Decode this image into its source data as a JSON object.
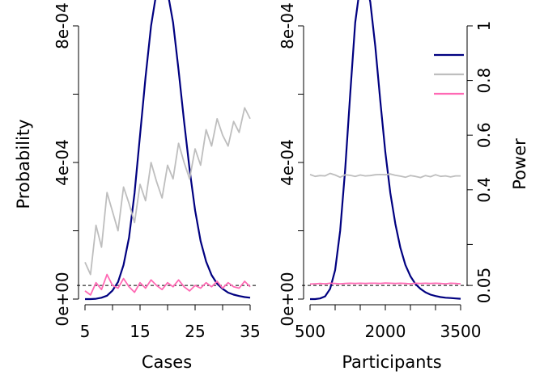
{
  "colors": {
    "probability": "#000080",
    "power_grey": "#bebebe",
    "power_pink": "#ff69b4",
    "reference": "#000000"
  },
  "chart_data": [
    {
      "type": "line",
      "xlabel": "Cases",
      "ylabel": "Probability",
      "xlim": [
        5,
        35
      ],
      "ylim": [
        0,
        0.0008
      ],
      "x_ticks": [
        5,
        10,
        15,
        20,
        25,
        30,
        35
      ],
      "x_tick_labels": [
        "5",
        "",
        "15",
        "",
        "25",
        "",
        "35"
      ],
      "y_ticks": [
        0,
        0.0002,
        0.0004,
        0.0006,
        0.0008
      ],
      "y_tick_labels": [
        "0e+00",
        "",
        "4e-04",
        "",
        "8e-04"
      ],
      "secondary_axis": {
        "label": "Power",
        "range": [
          0,
          1
        ],
        "ticks": [
          0.05,
          0.2,
          0.4,
          0.6,
          0.8,
          1
        ],
        "tick_labels": [
          "0.05",
          "",
          "0.4",
          "0.6",
          "0.8",
          "1"
        ]
      },
      "reference_line": {
        "axis": "power",
        "value": 0.05,
        "style": "dashed"
      },
      "series": [
        {
          "axis": "probability",
          "color": "#000080",
          "x": [
            5,
            6,
            7,
            8,
            9,
            10,
            11,
            12,
            13,
            14,
            15,
            16,
            17,
            18,
            19,
            20,
            21,
            22,
            23,
            24,
            25,
            26,
            27,
            28,
            29,
            30,
            31,
            32,
            33,
            34,
            35
          ],
          "y": [
            0,
            0,
            1e-06,
            4e-06,
            1e-05,
            2.5e-05,
            5e-05,
            0.0001,
            0.00018,
            0.00031,
            0.00048,
            0.00065,
            0.0008,
            0.0009,
            0.00093,
            0.0009,
            0.00081,
            0.00067,
            0.00052,
            0.00038,
            0.00026,
            0.00017,
            0.00011,
            7e-05,
            4.5e-05,
            3e-05,
            1.9e-05,
            1.3e-05,
            9e-06,
            6e-06,
            4e-06
          ]
        },
        {
          "axis": "power",
          "color": "#bebebe",
          "x": [
            5,
            6,
            7,
            8,
            9,
            10,
            11,
            12,
            13,
            14,
            15,
            16,
            17,
            18,
            19,
            20,
            21,
            22,
            23,
            24,
            25,
            26,
            27,
            28,
            29,
            30,
            31,
            32,
            33,
            34,
            35
          ],
          "y": [
            0.135,
            0.09,
            0.27,
            0.19,
            0.39,
            0.32,
            0.25,
            0.41,
            0.35,
            0.28,
            0.42,
            0.36,
            0.5,
            0.43,
            0.37,
            0.49,
            0.44,
            0.57,
            0.5,
            0.44,
            0.55,
            0.49,
            0.62,
            0.56,
            0.66,
            0.6,
            0.56,
            0.65,
            0.61,
            0.7,
            0.66
          ]
        },
        {
          "axis": "power",
          "color": "#ff69b4",
          "x": [
            5,
            6,
            7,
            8,
            9,
            10,
            11,
            12,
            13,
            14,
            15,
            16,
            17,
            18,
            19,
            20,
            21,
            22,
            23,
            24,
            25,
            26,
            27,
            28,
            29,
            30,
            31,
            32,
            33,
            34,
            35
          ],
          "y": [
            0.03,
            0.015,
            0.06,
            0.035,
            0.09,
            0.05,
            0.04,
            0.075,
            0.045,
            0.025,
            0.06,
            0.04,
            0.07,
            0.05,
            0.035,
            0.06,
            0.045,
            0.07,
            0.045,
            0.03,
            0.05,
            0.04,
            0.06,
            0.045,
            0.065,
            0.04,
            0.06,
            0.045,
            0.04,
            0.065,
            0.045
          ]
        }
      ]
    },
    {
      "type": "line",
      "xlabel": "Participants",
      "ylabel": "",
      "xlim": [
        500,
        3500
      ],
      "ylim": [
        0,
        0.0008
      ],
      "x_ticks": [
        500,
        1000,
        1500,
        2000,
        2500,
        3000,
        3500
      ],
      "x_tick_labels": [
        "500",
        "",
        "",
        "2000",
        "",
        "",
        "3500"
      ],
      "y_ticks": [
        0,
        0.0002,
        0.0004,
        0.0006,
        0.0008
      ],
      "y_tick_labels": [
        "0e+00",
        "",
        "4e-04",
        "",
        "8e-04"
      ],
      "secondary_axis": {
        "label": "Power",
        "range": [
          0,
          1
        ],
        "ticks": [
          0.05,
          0.2,
          0.4,
          0.6,
          0.8,
          1
        ],
        "tick_labels": [
          "0.05",
          "",
          "0.4",
          "0.6",
          "0.8",
          "1"
        ]
      },
      "reference_line": {
        "axis": "power",
        "value": 0.05,
        "style": "dashed"
      },
      "legend": {
        "position": "top-right",
        "entries": [
          {
            "color": "#000080"
          },
          {
            "color": "#bebebe"
          },
          {
            "color": "#ff69b4"
          }
        ]
      },
      "series": [
        {
          "axis": "probability",
          "color": "#000080",
          "x": [
            500,
            600,
            700,
            800,
            900,
            1000,
            1100,
            1200,
            1300,
            1400,
            1500,
            1600,
            1700,
            1800,
            1900,
            2000,
            2100,
            2200,
            2300,
            2400,
            2500,
            2600,
            2700,
            2800,
            2900,
            3000,
            3100,
            3200,
            3300,
            3400,
            3500
          ],
          "y": [
            0,
            0,
            2e-06,
            8e-06,
            3e-05,
            8.5e-05,
            0.0002,
            0.00038,
            0.0006,
            0.00081,
            0.00092,
            0.00094,
            0.00087,
            0.00074,
            0.00058,
            0.00043,
            0.00031,
            0.00022,
            0.00015,
            0.0001,
            6.7e-05,
            4.4e-05,
            3e-05,
            2e-05,
            1.3e-05,
            9e-06,
            6e-06,
            4e-06,
            3e-06,
            2e-06,
            1e-06
          ]
        },
        {
          "axis": "power",
          "color": "#bebebe",
          "x": [
            500,
            600,
            700,
            800,
            900,
            1000,
            1100,
            1200,
            1300,
            1400,
            1500,
            1600,
            1700,
            1800,
            1900,
            2000,
            2100,
            2200,
            2300,
            2400,
            2500,
            2600,
            2700,
            2800,
            2900,
            3000,
            3100,
            3200,
            3300,
            3400,
            3500
          ],
          "y": [
            0.456,
            0.449,
            0.452,
            0.451,
            0.46,
            0.454,
            0.446,
            0.455,
            0.453,
            0.449,
            0.454,
            0.451,
            0.452,
            0.455,
            0.456,
            0.455,
            0.458,
            0.453,
            0.45,
            0.446,
            0.452,
            0.449,
            0.445,
            0.452,
            0.448,
            0.455,
            0.449,
            0.451,
            0.447,
            0.451,
            0.451
          ]
        },
        {
          "axis": "power",
          "color": "#ff69b4",
          "x": [
            500,
            600,
            700,
            800,
            900,
            1000,
            1100,
            1200,
            1300,
            1400,
            1500,
            1600,
            1700,
            1800,
            1900,
            2000,
            2100,
            2200,
            2300,
            2400,
            2500,
            2600,
            2700,
            2800,
            2900,
            3000,
            3100,
            3200,
            3300,
            3400,
            3500
          ],
          "y": [
            0.055,
            0.056,
            0.057,
            0.056,
            0.058,
            0.057,
            0.056,
            0.057,
            0.058,
            0.057,
            0.058,
            0.057,
            0.058,
            0.058,
            0.057,
            0.059,
            0.058,
            0.057,
            0.058,
            0.057,
            0.056,
            0.058,
            0.057,
            0.058,
            0.057,
            0.058,
            0.057,
            0.056,
            0.058,
            0.057,
            0.056
          ]
        }
      ]
    }
  ]
}
